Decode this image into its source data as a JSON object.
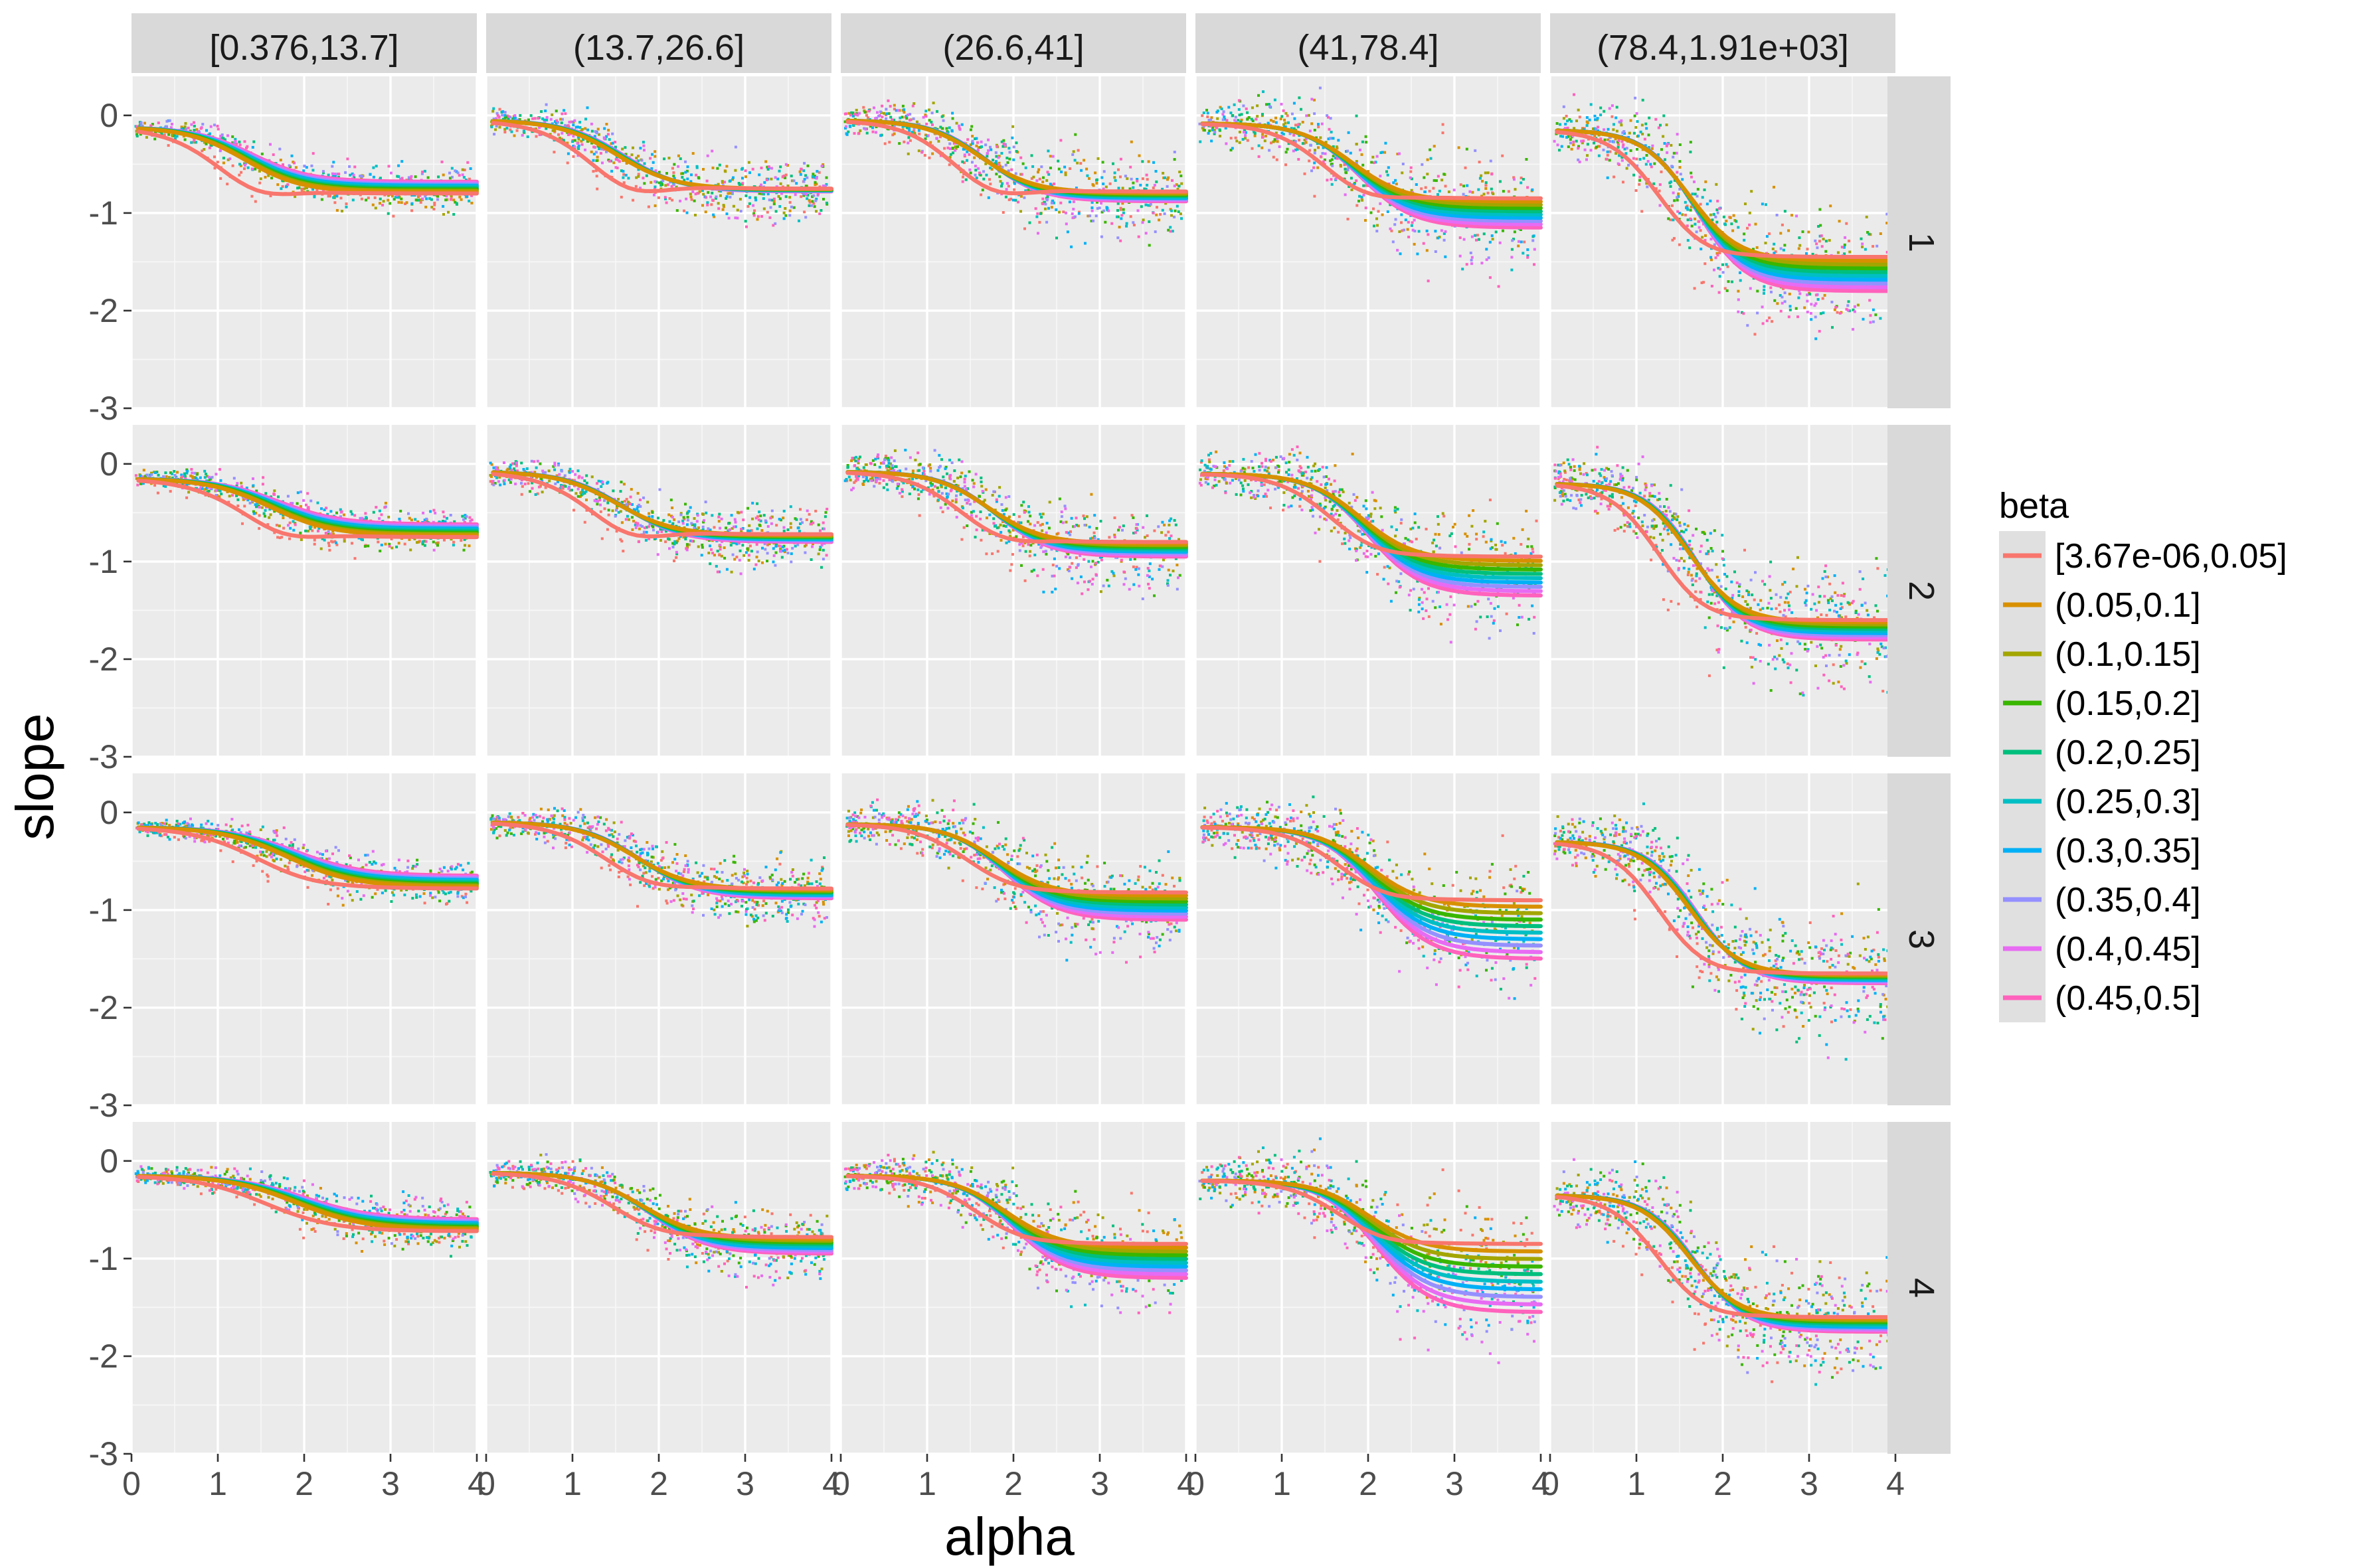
{
  "chart_data": {
    "type": "scatter",
    "facet_layout": "grid",
    "xlabel": "alpha",
    "ylabel": "slope",
    "xlim": [
      0,
      4
    ],
    "ylim": [
      -3,
      0.4
    ],
    "x_ticks": [
      0,
      1,
      2,
      3,
      4
    ],
    "y_ticks": [
      0,
      -1,
      -2,
      -3
    ],
    "grid": true,
    "smooth": "loess curve per beta level over points",
    "columns": [
      "[0.376,13.7]",
      "(13.7,26.6]",
      "(26.6,41]",
      "(41,78.4]",
      "(78.4,1.91e+03]"
    ],
    "rows": [
      "1",
      "2",
      "3",
      "4"
    ],
    "legend": {
      "title": "beta",
      "position": "right",
      "entries": [
        {
          "label": "[3.67e-06,0.05]",
          "color": "#F8766D"
        },
        {
          "label": "(0.05,0.1]",
          "color": "#D89000"
        },
        {
          "label": "(0.1,0.15]",
          "color": "#A3A500"
        },
        {
          "label": "(0.15,0.2]",
          "color": "#39B600"
        },
        {
          "label": "(0.2,0.25]",
          "color": "#00BF7D"
        },
        {
          "label": "(0.25,0.3]",
          "color": "#00BFC4"
        },
        {
          "label": "(0.3,0.35]",
          "color": "#00B0F6"
        },
        {
          "label": "(0.35,0.4]",
          "color": "#9590FF"
        },
        {
          "label": "(0.4,0.45]",
          "color": "#E76BF3"
        },
        {
          "label": "(0.45,0.5]",
          "color": "#FF62BC"
        }
      ]
    },
    "curve_model": "sigmoid: slope = start + (end - start) / (1 + exp(-steepness*(alpha - mid))); first level has an extra dip before rising back",
    "panel_curves": [
      [
        {
          "start": -0.12,
          "mid": 1.3,
          "steepness": 3.0,
          "end_first": -0.8,
          "end_last": -0.68,
          "dip": -0.95
        },
        {
          "start": -0.05,
          "mid": 1.5,
          "steepness": 3.0,
          "end_first": -0.75,
          "end_last": -0.78,
          "dip": -0.95
        },
        {
          "start": -0.05,
          "mid": 1.6,
          "steepness": 3.2,
          "end_first": -0.78,
          "end_last": -0.88,
          "dip": -0.95
        },
        {
          "start": -0.08,
          "mid": 1.8,
          "steepness": 3.2,
          "end_first": -0.85,
          "end_last": -1.15,
          "dip": -0.95
        },
        {
          "start": -0.15,
          "mid": 1.6,
          "steepness": 3.5,
          "end_first": -1.45,
          "end_last": -1.8,
          "dip": -1.5
        }
      ],
      [
        {
          "start": -0.15,
          "mid": 1.6,
          "steepness": 2.8,
          "end_first": -0.75,
          "end_last": -0.62,
          "dip": -0.88
        },
        {
          "start": -0.08,
          "mid": 1.5,
          "steepness": 3.0,
          "end_first": -0.72,
          "end_last": -0.8,
          "dip": -0.9
        },
        {
          "start": -0.08,
          "mid": 1.7,
          "steepness": 3.2,
          "end_first": -0.8,
          "end_last": -0.95,
          "dip": -0.9
        },
        {
          "start": -0.1,
          "mid": 1.9,
          "steepness": 3.2,
          "end_first": -0.95,
          "end_last": -1.35,
          "dip": -1.0
        },
        {
          "start": -0.2,
          "mid": 1.6,
          "steepness": 3.5,
          "end_first": -1.6,
          "end_last": -1.8,
          "dip": -1.65
        }
      ],
      [
        {
          "start": -0.15,
          "mid": 1.8,
          "steepness": 2.6,
          "end_first": -0.78,
          "end_last": -0.65,
          "dip": -0.8
        },
        {
          "start": -0.1,
          "mid": 1.7,
          "steepness": 3.0,
          "end_first": -0.78,
          "end_last": -0.88,
          "dip": -0.85
        },
        {
          "start": -0.12,
          "mid": 1.8,
          "steepness": 3.2,
          "end_first": -0.82,
          "end_last": -1.1,
          "dip": -0.85
        },
        {
          "start": -0.15,
          "mid": 2.0,
          "steepness": 3.2,
          "end_first": -0.9,
          "end_last": -1.5,
          "dip": -0.95
        },
        {
          "start": -0.3,
          "mid": 1.6,
          "steepness": 3.5,
          "end_first": -1.65,
          "end_last": -1.75,
          "dip": -1.7
        }
      ],
      [
        {
          "start": -0.15,
          "mid": 1.9,
          "steepness": 2.5,
          "end_first": -0.72,
          "end_last": -0.6,
          "dip": -0.72
        },
        {
          "start": -0.12,
          "mid": 1.8,
          "steepness": 3.0,
          "end_first": -0.78,
          "end_last": -0.95,
          "dip": -0.82
        },
        {
          "start": -0.15,
          "mid": 1.9,
          "steepness": 3.2,
          "end_first": -0.85,
          "end_last": -1.2,
          "dip": -0.88
        },
        {
          "start": -0.2,
          "mid": 2.0,
          "steepness": 3.2,
          "end_first": -0.85,
          "end_last": -1.55,
          "dip": -0.9
        },
        {
          "start": -0.35,
          "mid": 1.6,
          "steepness": 3.5,
          "end_first": -1.6,
          "end_last": -1.75,
          "dip": -1.65
        }
      ]
    ]
  }
}
